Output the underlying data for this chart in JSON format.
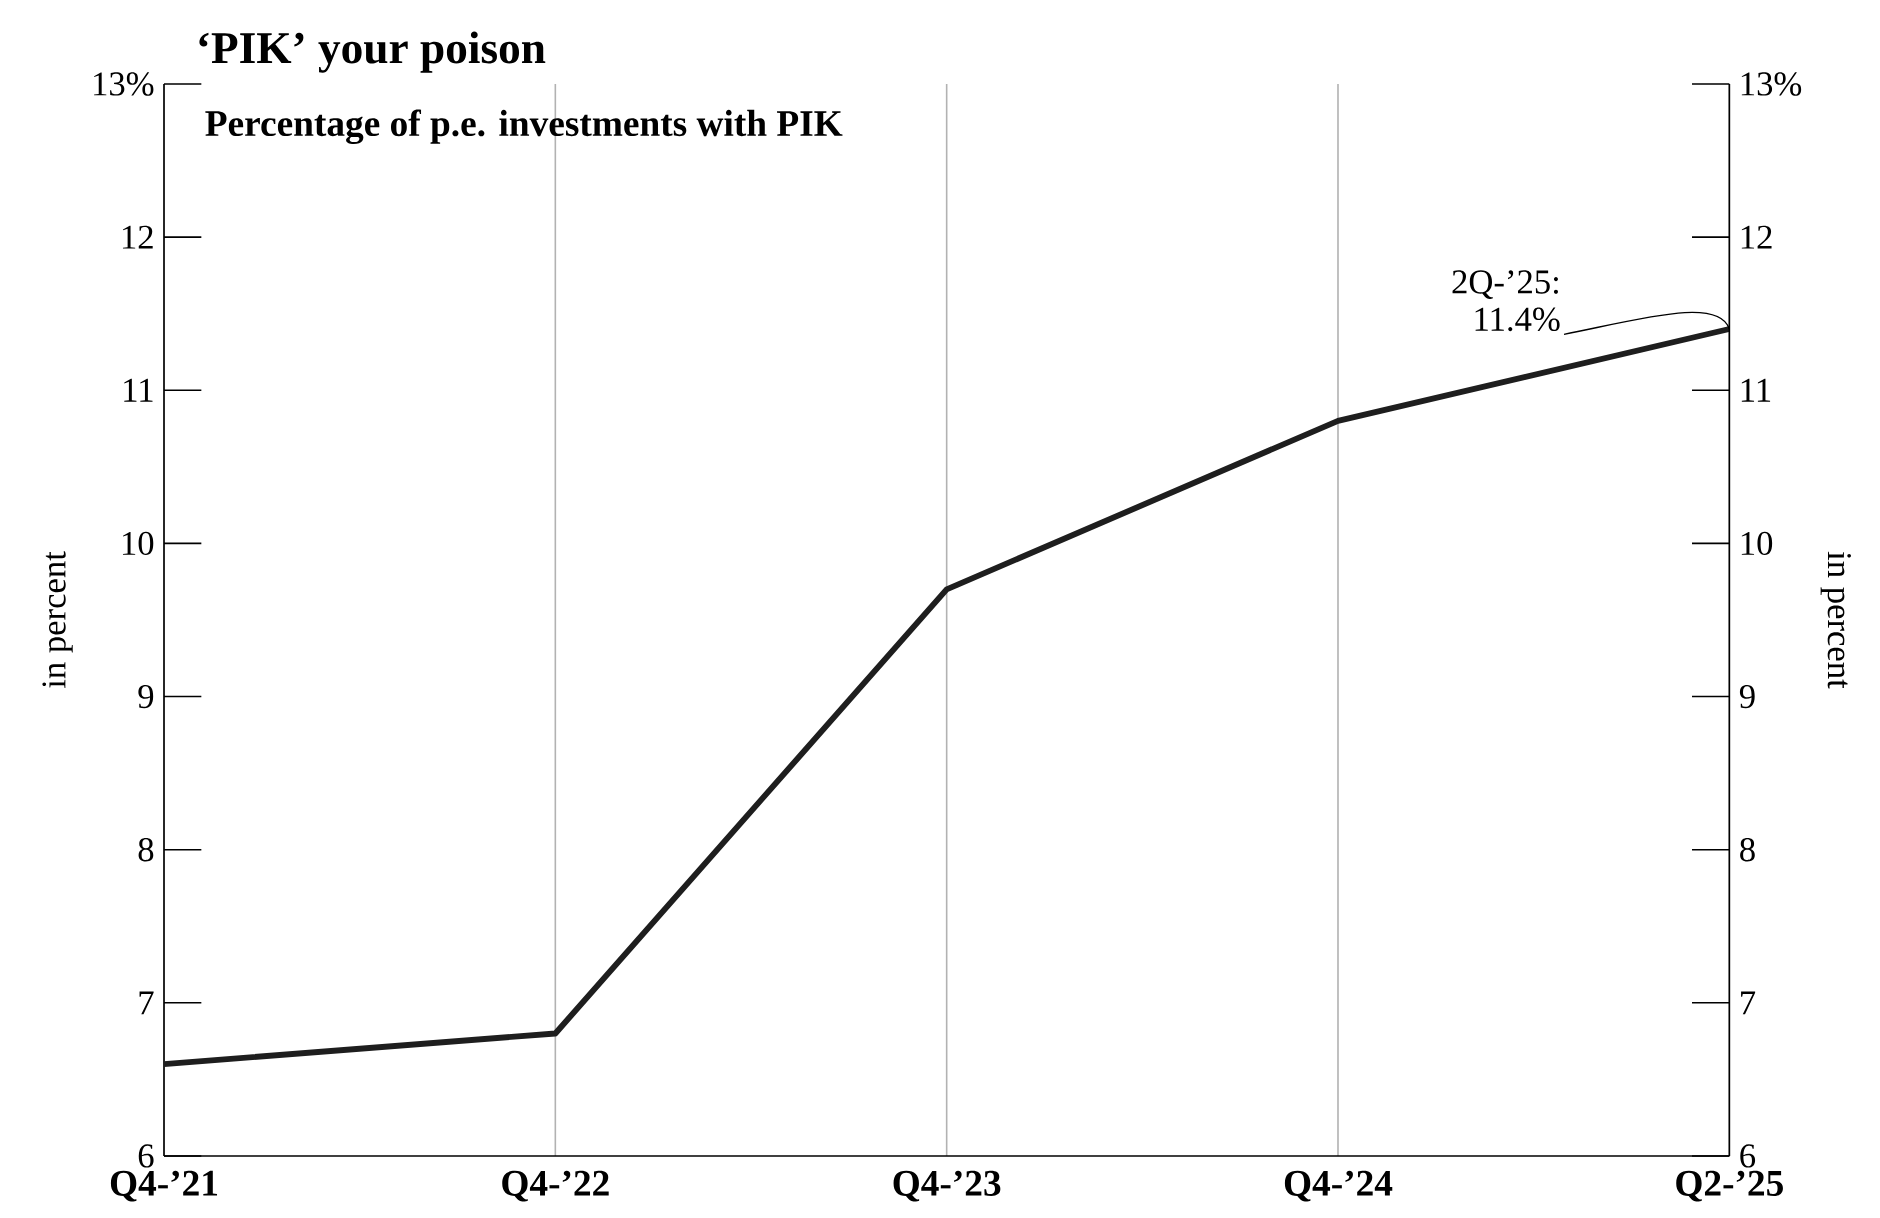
{
  "chart_data": {
    "type": "line",
    "title": "‘PIK’ your poison",
    "subtitle": "Percentage of p.e. investments with PIK",
    "categories": [
      "Q4-’21",
      "Q4-’22",
      "Q4-’23",
      "Q4-’24",
      "Q2-’25"
    ],
    "series": [
      {
        "color": "#1e1e1e",
        "values": [
          6.6,
          6.8,
          9.7,
          10.8,
          11.4
        ]
      }
    ],
    "ylim": [
      6,
      13
    ],
    "yticks": [
      6,
      7,
      8,
      9,
      10,
      11,
      12,
      {
        "value": 13,
        "label": "13%"
      }
    ],
    "y2lim": [
      6,
      13
    ],
    "y2ticks": [
      6,
      7,
      8,
      9,
      10,
      11,
      12,
      {
        "value": 13,
        "label": "13%"
      }
    ],
    "ylabel": "in percent",
    "y2label": "in percent",
    "grid": "x",
    "annotations": [
      {
        "text": "2Q-’25: 11.4%",
        "x": "Q2-’25",
        "y": 11.4
      }
    ]
  }
}
